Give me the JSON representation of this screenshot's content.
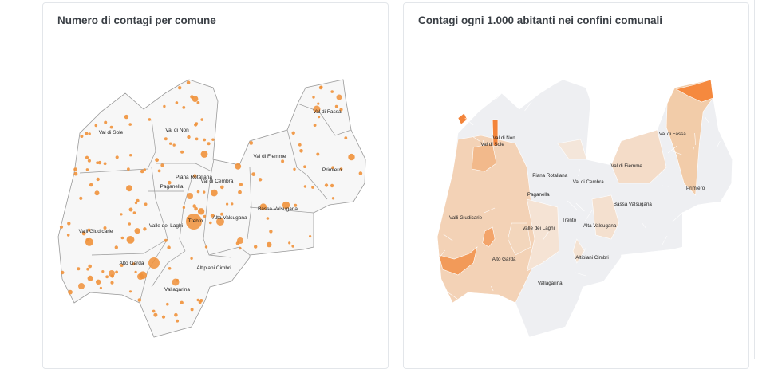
{
  "cards": [
    {
      "title": "Numero di contagi per comune"
    },
    {
      "title": "Contagi ogni 1.000 abitanti nei confini comunali"
    }
  ],
  "bubble_map": {
    "bubble_color": "#f0913a",
    "fill": "#f7f7f7",
    "border": "#9a9a9a",
    "labels": [
      "Val di Sole",
      "Val di Non",
      "Val di Fassa",
      "Val di Fiemme",
      "Primiero",
      "Piana Rotaliana",
      "Val di Cembra",
      "Paganella",
      "Trento",
      "Alta Valsugana",
      "Bassa Valsugana",
      "Valli Giudicarie",
      "Valle dei Laghi",
      "Alto Garda",
      "Altipiani Cimbri",
      "Vallagarina"
    ]
  },
  "choropleth_map": {
    "low_color": "#eeeff2",
    "high_color": "#f5853a",
    "labels": [
      "Val di Sole",
      "Val di Non",
      "Val di Fassa",
      "Val di Fiemme",
      "Primiero",
      "Piana Rotaliana",
      "Val di Cembra",
      "Paganella",
      "Trento",
      "Alta Valsugana",
      "Bassa Valsugana",
      "Valli Giudicarie",
      "Valle dei Laghi",
      "Alto Garda",
      "Altipiani Cimbri",
      "Vallagarina"
    ]
  }
}
